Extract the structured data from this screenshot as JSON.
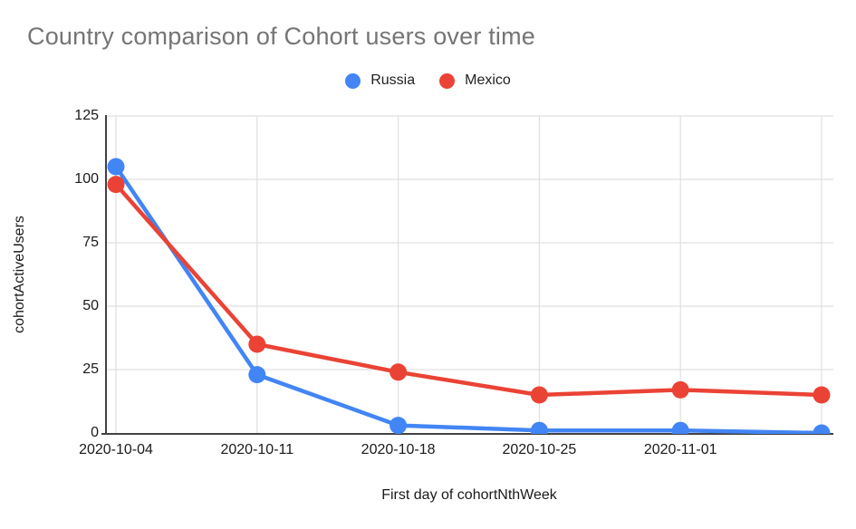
{
  "chart_data": {
    "type": "line",
    "title": "Country comparison of Cohort users over time",
    "xlabel": "First day of cohortNthWeek",
    "ylabel": "cohortActiveUsers",
    "categories": [
      "2020-10-04",
      "2020-10-11",
      "2020-10-18",
      "2020-10-25",
      "2020-11-01",
      ""
    ],
    "series": [
      {
        "name": "Russia",
        "color": "#4285F4",
        "values": [
          105,
          23,
          3,
          1,
          1,
          0
        ]
      },
      {
        "name": "Mexico",
        "color": "#EA4335",
        "values": [
          98,
          35,
          24,
          15,
          17,
          15
        ]
      }
    ],
    "yticks": [
      0,
      25,
      50,
      75,
      100,
      125
    ],
    "ylim": [
      0,
      125
    ],
    "grid": true,
    "legend_position": "top-center"
  },
  "colors": {
    "russia": "#4285F4",
    "mexico": "#EA4335",
    "title_text": "#757575",
    "axis_text": "#1a1a1a",
    "gridline": "#e0e0e0",
    "axis_line": "#424242",
    "background": "#ffffff"
  }
}
